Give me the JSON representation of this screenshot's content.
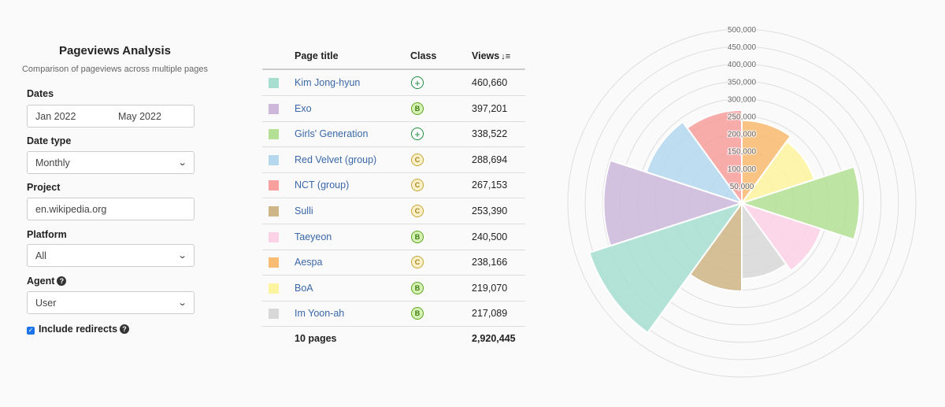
{
  "form": {
    "title": "Pageviews Analysis",
    "subtitle": "Comparison of pageviews across multiple pages",
    "dates_label": "Dates",
    "date_start": "Jan 2022",
    "date_end": "May 2022",
    "date_type_label": "Date type",
    "date_type_value": "Monthly",
    "project_label": "Project",
    "project_value": "en.wikipedia.org",
    "platform_label": "Platform",
    "platform_value": "All",
    "agent_label": "Agent",
    "agent_value": "User",
    "redirects_label": "Include redirects"
  },
  "table": {
    "headers": {
      "title": "Page title",
      "class": "Class",
      "views": "Views"
    },
    "rows": [
      {
        "title": "Kim Jong-hyun",
        "class": "GA",
        "class_symbol": "+",
        "views": "460,660",
        "color": "#a8ded0"
      },
      {
        "title": "Exo",
        "class": "B",
        "class_symbol": "B",
        "views": "397,201",
        "color": "#cdb8dc"
      },
      {
        "title": "Girls' Generation",
        "class": "GA",
        "class_symbol": "+",
        "views": "338,522",
        "color": "#b4e096"
      },
      {
        "title": "Red Velvet (group)",
        "class": "C",
        "class_symbol": "C",
        "views": "288,694",
        "color": "#b6d8ee"
      },
      {
        "title": "NCT (group)",
        "class": "C",
        "class_symbol": "C",
        "views": "267,153",
        "color": "#f7a09e"
      },
      {
        "title": "Sulli",
        "class": "C",
        "class_symbol": "C",
        "views": "253,390",
        "color": "#cfb688"
      },
      {
        "title": "Taeyeon",
        "class": "B",
        "class_symbol": "B",
        "views": "240,500",
        "color": "#fcd2e6"
      },
      {
        "title": "Aespa",
        "class": "C",
        "class_symbol": "C",
        "views": "238,166",
        "color": "#f8bc72"
      },
      {
        "title": "BoA",
        "class": "B",
        "class_symbol": "B",
        "views": "219,070",
        "color": "#fdf4a0"
      },
      {
        "title": "Im Yoon-ah",
        "class": "B",
        "class_symbol": "B",
        "views": "217,089",
        "color": "#d8d8d8"
      }
    ],
    "footer": {
      "pages": "10 pages",
      "total": "2,920,445"
    }
  },
  "class_colors": {
    "GA": {
      "border": "#1e8a3a",
      "text": "#1e8a3a",
      "bg": "#ffffff"
    },
    "B": {
      "border": "#5aa71e",
      "text": "#3b7d10",
      "bg": "#d7f0b4"
    },
    "C": {
      "border": "#c8a437",
      "text": "#a88420",
      "bg": "#fbf1c8"
    }
  },
  "chart_data": {
    "type": "polarArea",
    "title": "",
    "categories": [
      "Kim Jong-hyun",
      "Exo",
      "Girls' Generation",
      "Red Velvet (group)",
      "NCT (group)",
      "Sulli",
      "Taeyeon",
      "Aespa",
      "BoA",
      "Im Yoon-ah"
    ],
    "values": [
      460660,
      397201,
      338522,
      288694,
      267153,
      253390,
      240500,
      238166,
      219070,
      217089
    ],
    "colors": [
      "#a8ded0",
      "#cdb8dc",
      "#b4e096",
      "#b6d8ee",
      "#f7a09e",
      "#cfb688",
      "#fcd2e6",
      "#f8bc72",
      "#fdf4a0",
      "#d8d8d8"
    ],
    "slice_order": [
      "Aespa",
      "BoA",
      "Girls' Generation",
      "Taeyeon",
      "Im Yoon-ah",
      "Sulli",
      "Kim Jong-hyun",
      "Exo",
      "Red Velvet (group)",
      "NCT (group)"
    ],
    "r_range": [
      0,
      500000
    ],
    "tick_labels": [
      "50,000",
      "100,000",
      "150,000",
      "200,000",
      "250,000",
      "300,000",
      "350,000",
      "400,000",
      "450,000",
      "500,000"
    ]
  }
}
